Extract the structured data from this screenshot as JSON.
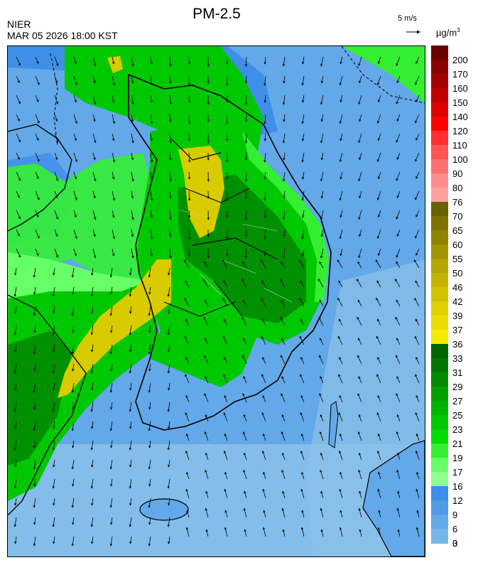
{
  "header": {
    "title": "PM-2.5",
    "org": "NIER",
    "datetime": "MAR 05 2026 18:00 KST",
    "wind_scale_label": "5 m/s",
    "unit_main": "µg/m",
    "unit_sup": "3"
  },
  "legend": {
    "levels": [
      {
        "label": "200",
        "color": "#6b0000"
      },
      {
        "label": "170",
        "color": "#8a0000"
      },
      {
        "label": "160",
        "color": "#a50000"
      },
      {
        "label": "150",
        "color": "#c00000"
      },
      {
        "label": "140",
        "color": "#dd0000"
      },
      {
        "label": "120",
        "color": "#ff0000"
      },
      {
        "label": "110",
        "color": "#ff3030"
      },
      {
        "label": "100",
        "color": "#ff5555"
      },
      {
        "label": "90",
        "color": "#ff7070"
      },
      {
        "label": "80",
        "color": "#ff8c8c"
      },
      {
        "label": "76",
        "color": "#ffa0a0"
      },
      {
        "label": "70",
        "color": "#6b6200"
      },
      {
        "label": "65",
        "color": "#7d7300"
      },
      {
        "label": "60",
        "color": "#8f8500"
      },
      {
        "label": "55",
        "color": "#a09500"
      },
      {
        "label": "50",
        "color": "#b2a600"
      },
      {
        "label": "46",
        "color": "#c2b400"
      },
      {
        "label": "42",
        "color": "#d2c300"
      },
      {
        "label": "39",
        "color": "#dfd000"
      },
      {
        "label": "37",
        "color": "#eadd00"
      },
      {
        "label": "36",
        "color": "#f4eb00"
      },
      {
        "label": "33",
        "color": "#006600"
      },
      {
        "label": "31",
        "color": "#007800"
      },
      {
        "label": "29",
        "color": "#008c00"
      },
      {
        "label": "27",
        "color": "#00a000"
      },
      {
        "label": "25",
        "color": "#00b400"
      },
      {
        "label": "23",
        "color": "#00c800"
      },
      {
        "label": "21",
        "color": "#00dc00"
      },
      {
        "label": "19",
        "color": "#33ee33"
      },
      {
        "label": "17",
        "color": "#66ff66"
      },
      {
        "label": "16",
        "color": "#90ff90"
      },
      {
        "label": "12",
        "color": "#3d8fe8"
      },
      {
        "label": "9",
        "color": "#4f9be8"
      },
      {
        "label": "6",
        "color": "#63a8e8"
      },
      {
        "label": "3",
        "color": "#77b5e8"
      },
      {
        "label": "0",
        "color": "#8cc2e8"
      }
    ]
  },
  "map_colors": {
    "sea_light": "#8cc2e8",
    "sea_mid": "#63a8e8",
    "sea_dark": "#3d8fe8",
    "land_green": "#00c800",
    "land_dark": "#009000",
    "land_light": "#66ff66",
    "yellow": "#d8cc00"
  }
}
